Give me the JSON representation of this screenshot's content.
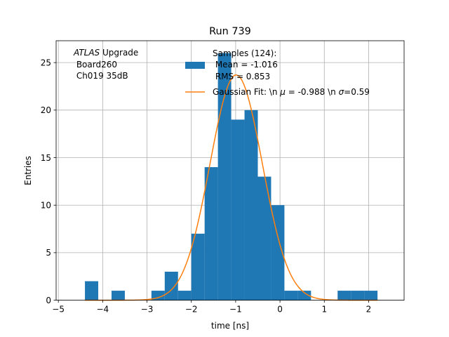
{
  "chart_data": {
    "type": "bar",
    "title": "Run 739",
    "xlabel": "time [ns]",
    "ylabel": "Entries",
    "xlim": [
      -5.05,
      2.8
    ],
    "ylim": [
      0,
      27.3
    ],
    "xticks": [
      -5,
      -4,
      -3,
      -2,
      -1,
      0,
      1,
      2
    ],
    "xtick_labels": [
      "−5",
      "−4",
      "−3",
      "−2",
      "−1",
      "0",
      "1",
      "2"
    ],
    "yticks": [
      0,
      5,
      10,
      15,
      20,
      25
    ],
    "ytick_labels": [
      "0",
      "5",
      "10",
      "15",
      "20",
      "25"
    ],
    "grid": true,
    "bar_color": "#1f77b4",
    "fit_color": "#ff7f0e",
    "bin_edges": [
      -4.4,
      -4.1,
      -3.8,
      -3.5,
      -3.2,
      -2.9,
      -2.6,
      -2.3,
      -2.0,
      -1.7,
      -1.4,
      -1.1,
      -0.8,
      -0.5,
      -0.2,
      0.1,
      0.4,
      0.7,
      1.0,
      1.3,
      1.6,
      1.9,
      2.2
    ],
    "counts": [
      2,
      0,
      1,
      0,
      0,
      1,
      3,
      1,
      7,
      14,
      26,
      19,
      20,
      13,
      10,
      1,
      1,
      0,
      0,
      1,
      1,
      1
    ],
    "fit": {
      "type": "gaussian",
      "amplitude": 23.7,
      "mean": -0.988,
      "sigma": 0.59,
      "x_range": [
        -4.4,
        2.2
      ]
    },
    "annotation": {
      "italic": "ATLAS",
      "line1_rest": " Upgrade",
      "line2": " Board260",
      "line3": " Ch019 35dB"
    },
    "legend": {
      "placement": "top-right",
      "samples_line1": "Samples (124):",
      "samples_line2": " Mean = -1.016",
      "samples_line3": " RMS = 0.853",
      "fit_pre": "Gaussian Fit: \\n ",
      "fit_mu": "μ",
      "fit_mid": " = -0.988 \\n ",
      "fit_sigma": "σ",
      "fit_post": "=0.59"
    }
  }
}
